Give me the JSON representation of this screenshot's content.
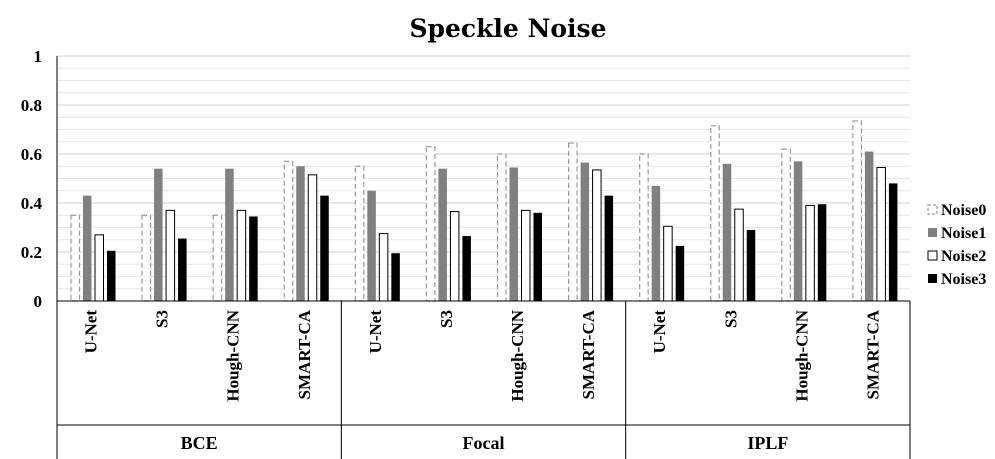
{
  "chart_data": {
    "type": "bar",
    "title": "Speckle Noise",
    "xlabel": "",
    "ylabel": "",
    "ylim": [
      0,
      1
    ],
    "yticks": [
      "0",
      "0.2",
      "0.4",
      "0.6",
      "0.8",
      "1"
    ],
    "grid": true,
    "legend_position": "right",
    "groups": [
      {
        "name": "BCE",
        "categories": [
          "U-Net",
          "S3",
          "Hough-CNN",
          "SMART-CA"
        ]
      },
      {
        "name": "Focal",
        "categories": [
          "U-Net",
          "S3",
          "Hough-CNN",
          "SMART-CA"
        ]
      },
      {
        "name": "IPLF",
        "categories": [
          "U-Net",
          "S3",
          "Hough-CNN",
          "SMART-CA"
        ]
      }
    ],
    "categories": [
      "U-Net",
      "S3",
      "Hough-CNN",
      "SMART-CA",
      "U-Net",
      "S3",
      "Hough-CNN",
      "SMART-CA",
      "U-Net",
      "S3",
      "Hough-CNN",
      "SMART-CA"
    ],
    "series": [
      {
        "name": "Noise0",
        "style": "dashed-outline",
        "color": "#999999",
        "values": [
          0.35,
          0.35,
          0.35,
          0.57,
          0.55,
          0.63,
          0.6,
          0.645,
          0.6,
          0.715,
          0.62,
          0.735
        ]
      },
      {
        "name": "Noise1",
        "style": "solid-fill",
        "color": "#808080",
        "values": [
          0.43,
          0.54,
          0.54,
          0.55,
          0.45,
          0.54,
          0.545,
          0.565,
          0.47,
          0.56,
          0.57,
          0.61
        ]
      },
      {
        "name": "Noise2",
        "style": "outline",
        "color": "#000000",
        "values": [
          0.27,
          0.37,
          0.37,
          0.515,
          0.275,
          0.365,
          0.37,
          0.535,
          0.305,
          0.375,
          0.39,
          0.545
        ]
      },
      {
        "name": "Noise3",
        "style": "solid-fill",
        "color": "#000000",
        "values": [
          0.205,
          0.255,
          0.345,
          0.43,
          0.195,
          0.265,
          0.36,
          0.43,
          0.225,
          0.29,
          0.395,
          0.48
        ]
      }
    ]
  }
}
